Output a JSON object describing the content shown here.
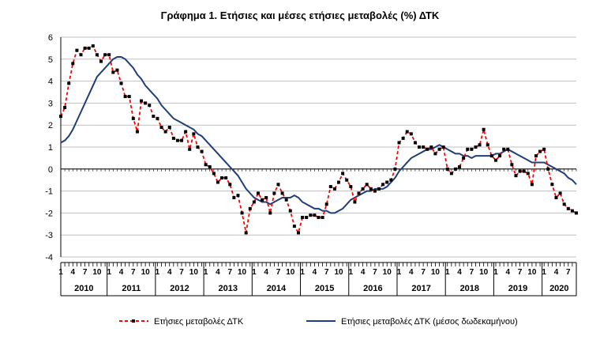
{
  "chart_data": {
    "type": "line",
    "title": "Γράφημα 1. Ετήσιες και μέσες ετήσιες μεταβολές (%) ΔΤΚ",
    "ylim": [
      -4,
      6
    ],
    "yticks": [
      "6",
      "5",
      "4",
      "3",
      "2",
      "1",
      "0",
      "-1",
      "-2",
      "-3",
      "-4"
    ],
    "years": [
      "2010",
      "2011",
      "2012",
      "2013",
      "2014",
      "2015",
      "2016",
      "2017",
      "2018",
      "2019",
      "2020"
    ],
    "month_labels": [
      "1",
      "4",
      "7",
      "10"
    ],
    "start": "2010-01",
    "end": "2020-09",
    "colors": {
      "annual": "#ff0000",
      "average": "#1f3f7a",
      "markers": "#000000",
      "axis": "#000000",
      "grid": "#bfbfbf"
    },
    "series": [
      {
        "name": "Ετήσιες μεταβολές ΔΤΚ",
        "style": "dashed-with-markers",
        "values": [
          2.4,
          2.8,
          3.9,
          4.8,
          5.4,
          5.2,
          5.5,
          5.5,
          5.6,
          5.2,
          4.9,
          5.2,
          5.2,
          4.4,
          4.5,
          3.9,
          3.3,
          3.3,
          2.3,
          1.7,
          3.1,
          3.0,
          2.9,
          2.4,
          2.3,
          1.9,
          1.7,
          1.9,
          1.4,
          1.3,
          1.3,
          1.7,
          0.9,
          1.6,
          1.0,
          0.8,
          0.2,
          0.1,
          -0.2,
          -0.6,
          -0.4,
          -0.4,
          -0.7,
          -1.3,
          -1.2,
          -2.0,
          -2.9,
          -1.8,
          -1.5,
          -1.1,
          -1.4,
          -1.3,
          -2.0,
          -1.1,
          -0.7,
          -1.1,
          -1.4,
          -1.9,
          -2.6,
          -2.9,
          -2.2,
          -2.2,
          -2.1,
          -2.1,
          -2.2,
          -2.2,
          -1.6,
          -0.8,
          -0.9,
          -0.6,
          -0.2,
          -0.5,
          -0.8,
          -1.5,
          -1.1,
          -0.9,
          -0.7,
          -0.9,
          -1.0,
          -0.9,
          -0.7,
          -0.6,
          -0.5,
          0.0,
          1.2,
          1.4,
          1.7,
          1.6,
          1.2,
          1.0,
          1.0,
          0.9,
          1.0,
          0.7,
          0.9,
          1.0,
          0.0,
          -0.2,
          0.0,
          0.1,
          0.5,
          0.9,
          0.9,
          1.0,
          1.1,
          1.8,
          1.1,
          0.6,
          0.4,
          0.6,
          0.9,
          0.9,
          0.2,
          -0.3,
          -0.1,
          -0.1,
          -0.2,
          -0.7,
          0.6,
          0.8,
          0.9,
          0.0,
          -0.7,
          -1.3,
          -1.1,
          -1.6,
          -1.8,
          -1.9,
          -2.0
        ]
      },
      {
        "name": "Ετήσιες μεταβολές ΔΤΚ (μέσος δωδεκαμήνου)",
        "style": "solid",
        "values": [
          1.2,
          1.3,
          1.5,
          1.8,
          2.2,
          2.6,
          3.0,
          3.4,
          3.8,
          4.2,
          4.4,
          4.6,
          4.8,
          5.0,
          5.1,
          5.1,
          5.0,
          4.8,
          4.6,
          4.3,
          4.1,
          3.8,
          3.6,
          3.4,
          3.2,
          2.9,
          2.7,
          2.5,
          2.3,
          2.2,
          2.1,
          2.0,
          1.9,
          1.8,
          1.6,
          1.5,
          1.3,
          1.1,
          0.9,
          0.7,
          0.5,
          0.3,
          0.1,
          -0.1,
          -0.3,
          -0.6,
          -0.9,
          -1.1,
          -1.3,
          -1.4,
          -1.5,
          -1.5,
          -1.6,
          -1.5,
          -1.4,
          -1.3,
          -1.3,
          -1.3,
          -1.2,
          -1.3,
          -1.5,
          -1.6,
          -1.7,
          -1.8,
          -1.8,
          -1.9,
          -1.9,
          -2.0,
          -2.0,
          -1.9,
          -1.8,
          -1.6,
          -1.4,
          -1.3,
          -1.2,
          -1.1,
          -1.0,
          -1.0,
          -0.9,
          -0.9,
          -0.9,
          -0.8,
          -0.6,
          -0.4,
          -0.1,
          0.1,
          0.3,
          0.5,
          0.6,
          0.7,
          0.8,
          0.9,
          0.9,
          1.0,
          1.1,
          1.0,
          0.9,
          0.8,
          0.7,
          0.7,
          0.6,
          0.6,
          0.5,
          0.6,
          0.6,
          0.6,
          0.6,
          0.6,
          0.7,
          0.7,
          0.8,
          0.9,
          0.8,
          0.7,
          0.6,
          0.5,
          0.4,
          0.3,
          0.3,
          0.3,
          0.3,
          0.2,
          0.1,
          0.0,
          -0.1,
          -0.2,
          -0.4,
          -0.5,
          -0.7
        ]
      }
    ],
    "grid": true,
    "legend": "bottom"
  }
}
